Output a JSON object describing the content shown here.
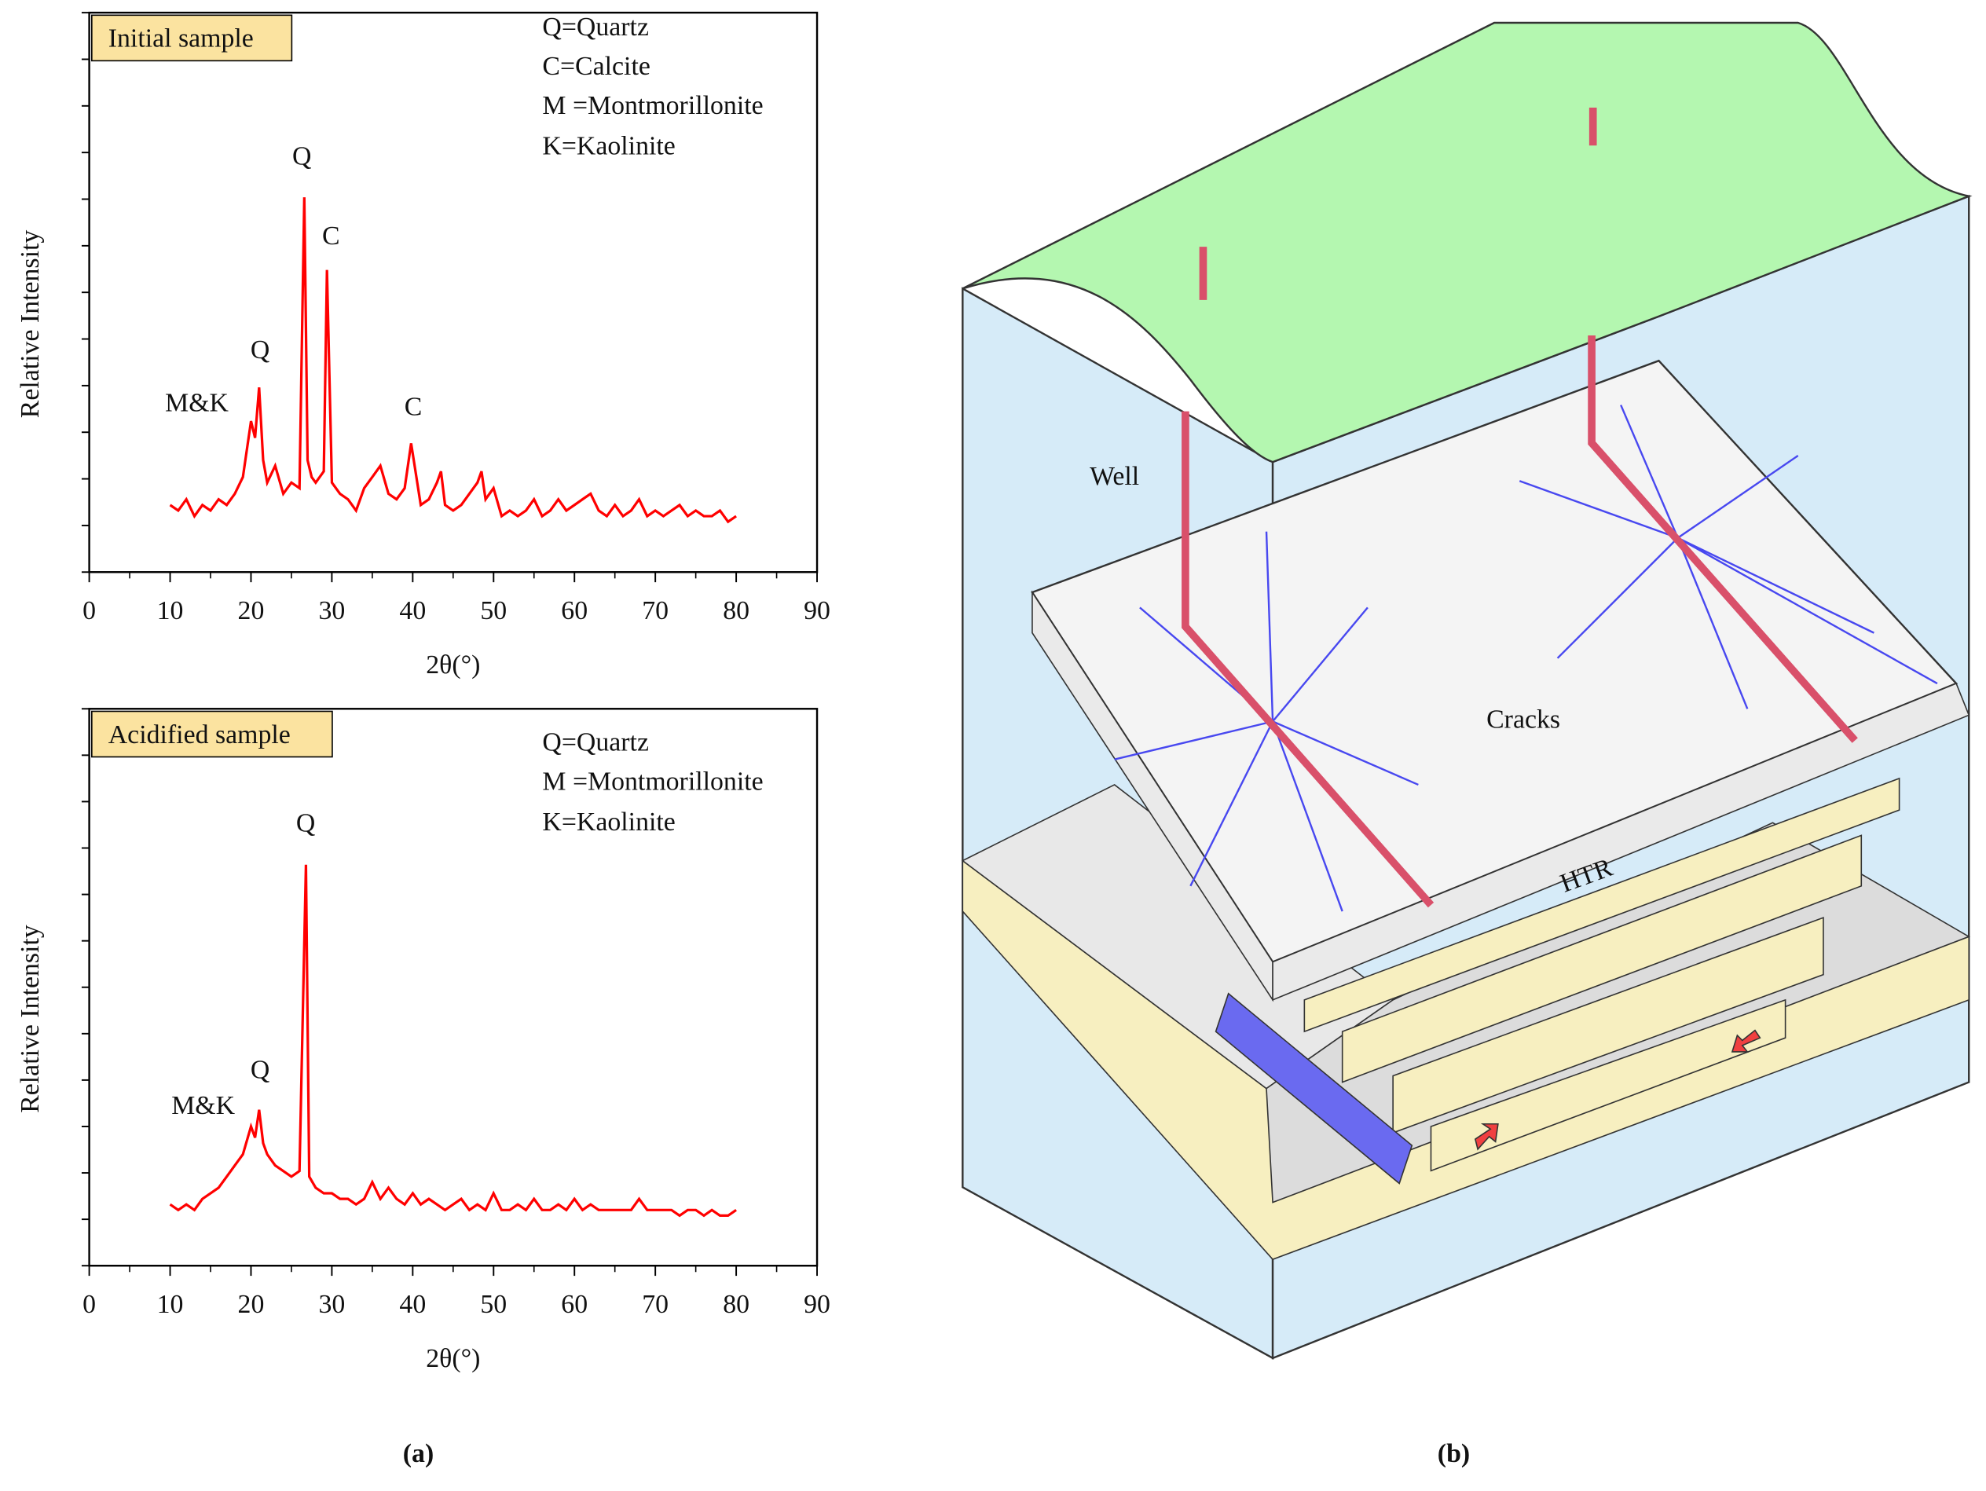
{
  "chart_data": [
    {
      "type": "line",
      "box_label": "Initial sample",
      "legend_text": [
        "Q=Quartz",
        "C=Calcite",
        "M =Montmorillonite",
        "K=Kaolinite"
      ],
      "peak_labels": [
        "M&K",
        "Q",
        "Q",
        "C",
        "C"
      ],
      "x_label": "2θ(°)",
      "y_label": "Relative Intensity",
      "x": [
        10,
        11,
        12,
        13,
        14,
        15,
        16,
        17,
        18,
        19,
        20,
        20.5,
        21,
        21.5,
        22,
        23,
        24,
        25,
        26,
        26.6,
        27,
        27.5,
        28,
        29,
        29.4,
        30,
        31,
        32,
        33,
        34,
        35,
        36,
        37,
        38,
        39,
        39.8,
        41,
        42,
        43,
        43.5,
        44,
        45,
        46,
        47,
        48,
        48.5,
        49,
        50,
        51,
        52,
        53,
        54,
        55,
        56,
        57,
        58,
        59,
        60,
        61,
        62,
        63,
        64,
        65,
        66,
        67,
        68,
        69,
        70,
        71,
        72,
        73,
        74,
        75,
        76,
        77,
        78,
        79,
        80
      ],
      "series": [
        {
          "color": "#ff0000",
          "values": [
            12,
            11,
            13,
            10,
            12,
            11,
            13,
            12,
            14,
            17,
            27,
            24,
            33,
            20,
            16,
            19,
            14,
            16,
            15,
            67,
            20,
            17,
            16,
            18,
            54,
            16,
            14,
            13,
            11,
            15,
            17,
            19,
            14,
            13,
            15,
            23,
            12,
            13,
            16,
            18,
            12,
            11,
            12,
            14,
            16,
            18,
            13,
            15,
            10,
            11,
            10,
            11,
            13,
            10,
            11,
            13,
            11,
            12,
            13,
            14,
            11,
            10,
            12,
            10,
            11,
            13,
            10,
            11,
            10,
            11,
            12,
            10,
            11,
            10,
            10,
            11,
            9,
            10
          ]
        }
      ],
      "xlim": [
        0,
        90
      ],
      "xticks": [
        0,
        10,
        20,
        30,
        40,
        50,
        60,
        70,
        80,
        90
      ],
      "ylim": [
        0,
        100
      ]
    },
    {
      "type": "line",
      "box_label": "Acidified sample",
      "legend_text": [
        "Q=Quartz",
        "M =Montmorillonite",
        "K=Kaolinite"
      ],
      "peak_labels": [
        "M&K",
        "Q",
        "Q"
      ],
      "x_label": "2θ(°)",
      "y_label": "Relative Intensity",
      "x": [
        10,
        11,
        12,
        13,
        14,
        15,
        16,
        17,
        18,
        19,
        20,
        20.5,
        21,
        21.5,
        22,
        23,
        24,
        25,
        26,
        26.8,
        27.2,
        28,
        29,
        30,
        31,
        32,
        33,
        34,
        35,
        36,
        37,
        38,
        39,
        40,
        41,
        42,
        43,
        44,
        45,
        46,
        47,
        48,
        49,
        50,
        51,
        52,
        53,
        54,
        55,
        56,
        57,
        58,
        59,
        60,
        61,
        62,
        63,
        64,
        65,
        66,
        67,
        68,
        69,
        70,
        71,
        72,
        73,
        74,
        75,
        76,
        77,
        78,
        79,
        80
      ],
      "series": [
        {
          "color": "#ff0000",
          "values": [
            11,
            10,
            11,
            10,
            12,
            13,
            14,
            16,
            18,
            20,
            25,
            23,
            28,
            22,
            20,
            18,
            17,
            16,
            17,
            72,
            16,
            14,
            13,
            13,
            12,
            12,
            11,
            12,
            15,
            12,
            14,
            12,
            11,
            13,
            11,
            12,
            11,
            10,
            11,
            12,
            10,
            11,
            10,
            13,
            10,
            10,
            11,
            10,
            12,
            10,
            10,
            11,
            10,
            12,
            10,
            11,
            10,
            10,
            10,
            10,
            10,
            12,
            10,
            10,
            10,
            10,
            9,
            10,
            10,
            9,
            10,
            9,
            9,
            10
          ]
        }
      ],
      "xlim": [
        0,
        90
      ],
      "xticks": [
        0,
        10,
        20,
        30,
        40,
        50,
        60,
        70,
        80,
        90
      ],
      "ylim": [
        0,
        100
      ]
    }
  ],
  "panel_labels": [
    "(a)",
    "(b)"
  ],
  "diagram": {
    "labels": [
      "Well",
      "Cracks",
      "HTR"
    ]
  }
}
